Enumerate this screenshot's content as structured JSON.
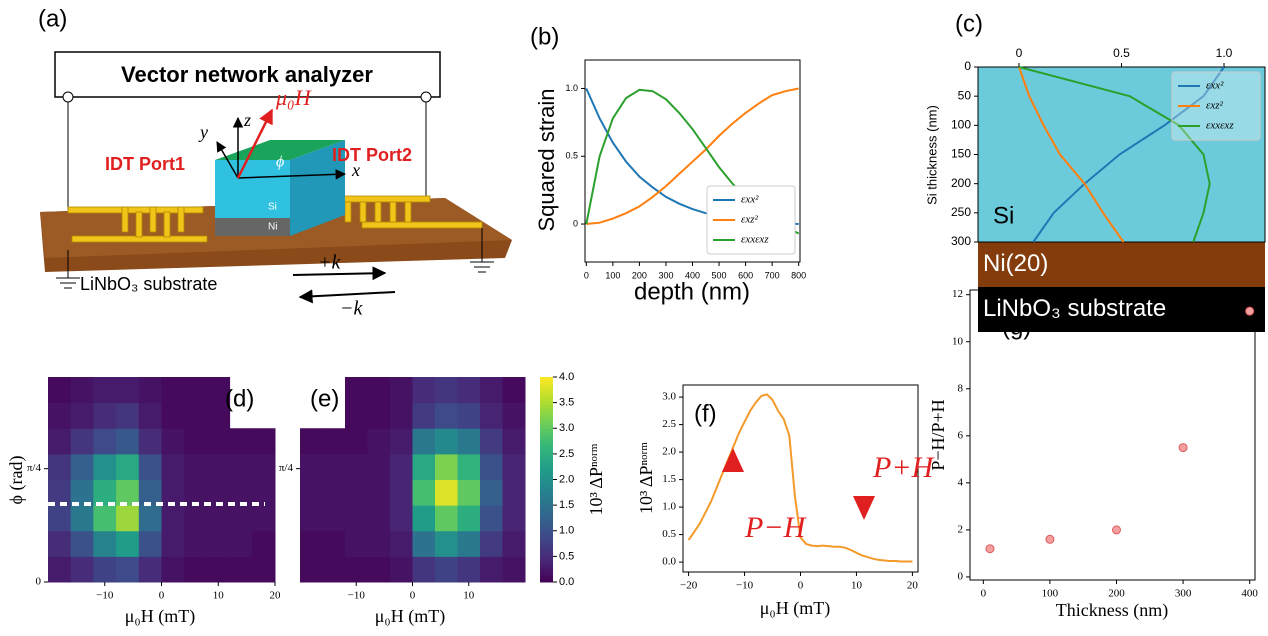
{
  "diagram": {
    "label": "(a)",
    "analyzer": "Vector network analyzer",
    "port1": "IDT Port1",
    "port2": "IDT Port2",
    "substrate": "LiNbO₃ substrate",
    "si": "Si",
    "ni": "Ni",
    "field": "μ₀H",
    "angle": "ϕ",
    "axes": [
      "x",
      "y",
      "z"
    ],
    "waves": [
      "+k",
      "−k"
    ]
  },
  "chart_data": [
    {
      "type": "line",
      "label": "(b)",
      "xlabel": "depth (nm)",
      "ylabel": "Squared strain",
      "x": [
        0,
        50,
        100,
        150,
        200,
        250,
        300,
        350,
        400,
        450,
        500,
        550,
        600,
        650,
        700,
        750,
        800
      ],
      "xlim": [
        -5,
        805
      ],
      "xticks": [
        0,
        100,
        200,
        300,
        400,
        500,
        600,
        700,
        800
      ],
      "ylim": [
        -0.28,
        1.21
      ],
      "yticks": [
        0,
        0.5,
        {
          "value": 1,
          "label": "1.0"
        }
      ],
      "legend": "lower right",
      "series": [
        {
          "name": "εxx²",
          "color": "#1f77b4",
          "values": [
            1.0,
            0.78,
            0.6,
            0.46,
            0.35,
            0.27,
            0.2,
            0.15,
            0.11,
            0.08,
            0.06,
            0.04,
            0.03,
            0.02,
            0.01,
            0.005,
            0.0
          ]
        },
        {
          "name": "εxz²",
          "color": "#ff7f0e",
          "values": [
            0,
            0.01,
            0.04,
            0.08,
            0.13,
            0.2,
            0.28,
            0.37,
            0.46,
            0.55,
            0.65,
            0.74,
            0.82,
            0.89,
            0.95,
            0.98,
            1.0
          ]
        },
        {
          "name": "εxxεxz",
          "color": "#2ca02c",
          "values": [
            0,
            0.5,
            0.78,
            0.93,
            0.99,
            0.98,
            0.92,
            0.82,
            0.7,
            0.56,
            0.42,
            0.3,
            0.19,
            0.1,
            0.03,
            -0.02,
            -0.07
          ]
        }
      ]
    },
    {
      "type": "line",
      "label": "(c)",
      "ylabel": "Si thickness (nm)",
      "y": [
        0,
        50,
        100,
        150,
        200,
        250,
        300
      ],
      "ylim": [
        0,
        300
      ],
      "invert_y": true,
      "yticks": [
        0,
        50,
        100,
        150,
        200,
        250,
        300
      ],
      "xlim": [
        -0.2,
        1.2
      ],
      "xticks": [
        0,
        0.5,
        {
          "value": 1,
          "label": "1.0"
        }
      ],
      "xaxis": "top",
      "legend": "upper right",
      "layers": [
        {
          "name": "Si",
          "color": "#6ccbdb"
        },
        {
          "name": "Ni(20)",
          "color": "#843c0c"
        },
        {
          "name": "LiNbO₃ substrate",
          "color": "#000000"
        }
      ],
      "series": [
        {
          "name": "εxx²",
          "color": "#1f77b4",
          "values": [
            1.0,
            0.9,
            0.71,
            0.49,
            0.32,
            0.17,
            0.07
          ]
        },
        {
          "name": "εxz²",
          "color": "#ff7f0e",
          "values": [
            0,
            0.05,
            0.12,
            0.2,
            0.32,
            0.41,
            0.51
          ]
        },
        {
          "name": "εxxεxz",
          "color": "#2ca02c",
          "values": [
            0,
            0.54,
            0.78,
            0.9,
            0.93,
            0.9,
            0.85
          ]
        }
      ]
    },
    {
      "type": "heatmap",
      "label": "(d)",
      "xlabel": "μ₀H (mT)",
      "ylabel": "ϕ (rad)",
      "colormap": "viridis",
      "clim": [
        0,
        4
      ],
      "xbins": [
        -20,
        -16,
        -12,
        -8,
        -4,
        0,
        4,
        8,
        12,
        16,
        20
      ],
      "ybins": [
        0,
        0.1775,
        0.355,
        0.5325,
        0.71,
        0.8875,
        1.065,
        1.2425,
        1.42
      ],
      "xlim": [
        -20,
        20
      ],
      "ylim": [
        0,
        1.42
      ],
      "xticks": [
        {
          "value": -10,
          "label": "−10"
        },
        0,
        10,
        20
      ],
      "yticks": [
        0,
        {
          "value": 0.785,
          "label": "π/4"
        }
      ],
      "hline": 0.54,
      "values": [
        [
          0.3,
          0.5,
          0.8,
          0.9,
          0.5,
          0.2,
          0.1,
          0.1,
          0.1,
          0.1
        ],
        [
          0.5,
          1.0,
          1.8,
          2.2,
          1.0,
          0.3,
          0.2,
          0.2,
          0.2,
          0.1
        ],
        [
          0.8,
          1.6,
          2.8,
          3.4,
          1.4,
          0.3,
          0.2,
          0.2,
          0.2,
          0.2
        ],
        [
          0.7,
          1.5,
          2.5,
          3.0,
          1.2,
          0.3,
          0.2,
          0.2,
          0.2,
          0.2
        ],
        [
          0.6,
          1.2,
          2.0,
          2.4,
          1.0,
          0.3,
          0.2,
          0.2,
          0.2,
          0.2
        ],
        [
          0.3,
          0.6,
          0.9,
          1.1,
          0.5,
          0.2,
          0.1,
          0.1,
          0.1,
          0.1
        ],
        [
          0.2,
          0.3,
          0.5,
          0.6,
          0.3,
          0.1,
          0.1,
          0.1,
          null,
          null
        ],
        [
          0.1,
          0.2,
          0.3,
          0.3,
          0.2,
          0.1,
          0.1,
          0.1,
          null,
          null
        ]
      ]
    },
    {
      "type": "heatmap",
      "label": "(e)",
      "xlabel": "μ₀H (mT)",
      "colormap": "viridis",
      "clim": [
        0,
        4
      ],
      "xbins": [
        -20,
        -16,
        -12,
        -8,
        -4,
        0,
        4,
        8,
        12,
        16,
        20
      ],
      "ybins": [
        0,
        0.1775,
        0.355,
        0.5325,
        0.71,
        0.8875,
        1.065,
        1.2425,
        1.42
      ],
      "xlim": [
        -20,
        20
      ],
      "ylim": [
        0,
        1.42
      ],
      "xticks": [
        {
          "value": -10,
          "label": "−10"
        },
        0,
        10
      ],
      "yticks": [
        {
          "value": 0.785,
          "label": "π/4"
        }
      ],
      "colorbar": {
        "label": "10³ ΔPⁿᵒʳᵐ",
        "ticks": [
          {
            "value": 0,
            "label": "0.0"
          },
          0.5,
          {
            "value": 1,
            "label": "1.0"
          },
          1.5,
          {
            "value": 2,
            "label": "2.0"
          },
          2.5,
          {
            "value": 3,
            "label": "3.0"
          },
          3.5,
          {
            "value": 4,
            "label": "4.0"
          }
        ]
      },
      "values": [
        [
          0.1,
          0.1,
          0.1,
          0.1,
          0.2,
          0.6,
          0.8,
          0.6,
          0.3,
          0.2
        ],
        [
          0.1,
          0.1,
          0.2,
          0.2,
          0.3,
          1.5,
          2.0,
          1.6,
          0.7,
          0.3
        ],
        [
          0.2,
          0.2,
          0.2,
          0.2,
          0.4,
          2.2,
          3.0,
          2.5,
          1.0,
          0.4
        ],
        [
          0.2,
          0.2,
          0.2,
          0.2,
          0.4,
          2.8,
          3.8,
          3.0,
          1.2,
          0.4
        ],
        [
          0.2,
          0.2,
          0.2,
          0.2,
          0.4,
          2.4,
          3.2,
          2.6,
          1.0,
          0.4
        ],
        [
          0.1,
          0.1,
          0.1,
          0.2,
          0.3,
          1.6,
          1.9,
          1.6,
          0.7,
          0.3
        ],
        [
          null,
          null,
          0.1,
          0.1,
          0.2,
          0.7,
          0.9,
          0.8,
          0.4,
          0.2
        ],
        [
          null,
          null,
          0.1,
          0.1,
          0.2,
          0.5,
          0.6,
          0.5,
          0.3,
          0.1
        ]
      ]
    },
    {
      "type": "line",
      "label": "(f)",
      "xlabel": "μ₀H (mT)",
      "ylabel": "10³ ΔPⁿᵒʳᵐ",
      "x": [
        -20,
        -19,
        -18,
        -17,
        -16,
        -15,
        -14,
        -13,
        -12,
        -11,
        -10,
        -9,
        -8,
        -7,
        -6,
        -5,
        -4,
        -3,
        -2,
        -1,
        0,
        1,
        2,
        3,
        4,
        5,
        6,
        7,
        8,
        9,
        10,
        11,
        12,
        13,
        14,
        15,
        16,
        17,
        18,
        19,
        20
      ],
      "xlim": [
        -21,
        21
      ],
      "xticks": [
        {
          "value": -20,
          "label": "−20"
        },
        {
          "value": -10,
          "label": "−10"
        },
        0,
        10,
        20
      ],
      "ylim": [
        -0.18,
        3.22
      ],
      "yticks": [
        {
          "value": 0,
          "label": "0.0"
        },
        0.5,
        {
          "value": 1,
          "label": "1.0"
        },
        1.5,
        {
          "value": 2,
          "label": "2.0"
        },
        2.5,
        {
          "value": 3,
          "label": "3.0"
        }
      ],
      "annotations": [
        "P−H",
        "P+H"
      ],
      "series": [
        {
          "color": "#f39a2b",
          "values": [
            0.4,
            0.55,
            0.7,
            0.9,
            1.1,
            1.35,
            1.6,
            1.85,
            2.1,
            2.35,
            2.55,
            2.75,
            2.9,
            3.02,
            3.05,
            2.95,
            2.75,
            2.6,
            2.3,
            1.2,
            0.45,
            0.33,
            0.3,
            0.29,
            0.3,
            0.29,
            0.28,
            0.28,
            0.26,
            0.22,
            0.17,
            0.12,
            0.09,
            0.06,
            0.04,
            0.03,
            0.02,
            0.02,
            0.01,
            0.01,
            0.01
          ]
        }
      ]
    },
    {
      "type": "scatter",
      "label": "(g)",
      "xlabel": "Thickness (nm)",
      "ylabel": "P−H/P+H",
      "x": [
        10,
        100,
        200,
        300,
        400
      ],
      "values": [
        1.2,
        1.6,
        2.0,
        5.5,
        11.3
      ],
      "color": "#f4a0a0",
      "edgecolor": "#e05a5a",
      "xlim": [
        -20,
        408
      ],
      "xticks": [
        0,
        100,
        200,
        300,
        400
      ],
      "ylim": [
        -0.13,
        12.2
      ],
      "yticks": [
        0,
        2,
        4,
        6,
        8,
        10,
        12
      ]
    }
  ]
}
